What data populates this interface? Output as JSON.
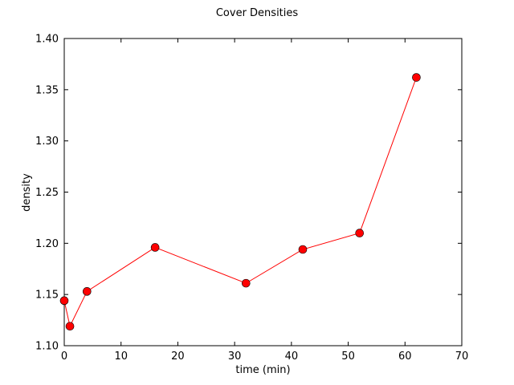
{
  "chart_data": {
    "type": "line",
    "title": "Cover Densities",
    "xlabel": "time (min)",
    "ylabel": "density",
    "xlim": [
      0,
      70
    ],
    "ylim": [
      1.1,
      1.4
    ],
    "xticks": [
      "0",
      "10",
      "20",
      "30",
      "40",
      "50",
      "60",
      "70"
    ],
    "yticks": [
      "1.10",
      "1.15",
      "1.20",
      "1.25",
      "1.30",
      "1.35",
      "1.40"
    ],
    "grid": false,
    "legend": "none",
    "series": [
      {
        "color": "#ff0000",
        "marker": "circle",
        "x": [
          0,
          1,
          4,
          16,
          32,
          42,
          52,
          62
        ],
        "y": [
          1.144,
          1.119,
          1.153,
          1.196,
          1.161,
          1.194,
          1.21,
          1.362
        ]
      }
    ]
  }
}
